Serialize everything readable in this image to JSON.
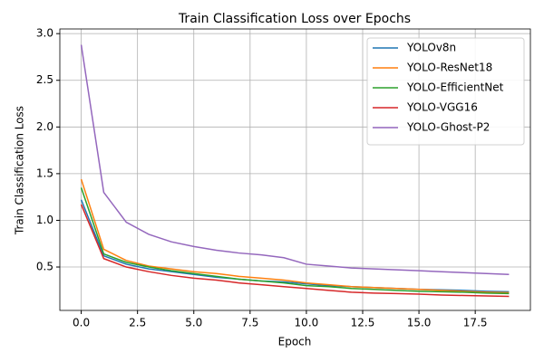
{
  "chart_data": {
    "type": "line",
    "title": "Train Classification Loss over Epochs",
    "x_label": "Epoch",
    "y_label": "Train Classification Loss",
    "x": [
      0,
      1,
      2,
      3,
      4,
      5,
      6,
      7,
      8,
      9,
      10,
      11,
      12,
      13,
      14,
      15,
      16,
      17,
      18,
      19
    ],
    "series": [
      {
        "name": "YOLOv8n",
        "color": "#1f77b4",
        "values": [
          1.22,
          0.62,
          0.53,
          0.48,
          0.45,
          0.42,
          0.39,
          0.37,
          0.35,
          0.34,
          0.32,
          0.3,
          0.29,
          0.28,
          0.27,
          0.26,
          0.255,
          0.25,
          0.24,
          0.235
        ]
      },
      {
        "name": "YOLO-ResNet18",
        "color": "#ff7f0e",
        "values": [
          1.44,
          0.69,
          0.57,
          0.51,
          0.48,
          0.45,
          0.43,
          0.4,
          0.38,
          0.36,
          0.33,
          0.31,
          0.29,
          0.28,
          0.27,
          0.26,
          0.25,
          0.24,
          0.23,
          0.225
        ]
      },
      {
        "name": "YOLO-EfficientNet",
        "color": "#2ca02c",
        "values": [
          1.35,
          0.64,
          0.55,
          0.5,
          0.46,
          0.43,
          0.4,
          0.37,
          0.35,
          0.33,
          0.3,
          0.29,
          0.27,
          0.26,
          0.25,
          0.24,
          0.235,
          0.23,
          0.22,
          0.215
        ]
      },
      {
        "name": "YOLO-VGG16",
        "color": "#d62728",
        "values": [
          1.17,
          0.59,
          0.5,
          0.45,
          0.41,
          0.38,
          0.36,
          0.33,
          0.31,
          0.29,
          0.27,
          0.25,
          0.23,
          0.22,
          0.215,
          0.21,
          0.2,
          0.195,
          0.19,
          0.185
        ]
      },
      {
        "name": "YOLO-Ghost-P2",
        "color": "#9467bd",
        "values": [
          2.88,
          1.3,
          0.98,
          0.85,
          0.77,
          0.72,
          0.68,
          0.65,
          0.63,
          0.6,
          0.53,
          0.51,
          0.49,
          0.48,
          0.47,
          0.46,
          0.45,
          0.44,
          0.43,
          0.42
        ]
      }
    ],
    "xlim": [
      -0.95,
      19.95
    ],
    "xticks": [
      {
        "value": 0,
        "label": "0.0"
      },
      2.5,
      {
        "value": 5,
        "label": "5.0"
      },
      7.5,
      {
        "value": 10,
        "label": "10.0"
      },
      12.5,
      {
        "value": 15,
        "label": "15.0"
      },
      17.5
    ],
    "ylim": [
      0.035,
      3.05
    ],
    "yticks": [
      0.5,
      {
        "value": 1,
        "label": "1.0"
      },
      1.5,
      {
        "value": 2,
        "label": "2.0"
      },
      2.5,
      {
        "value": 3,
        "label": "3.0"
      }
    ],
    "grid": true,
    "legend": "upper right"
  }
}
